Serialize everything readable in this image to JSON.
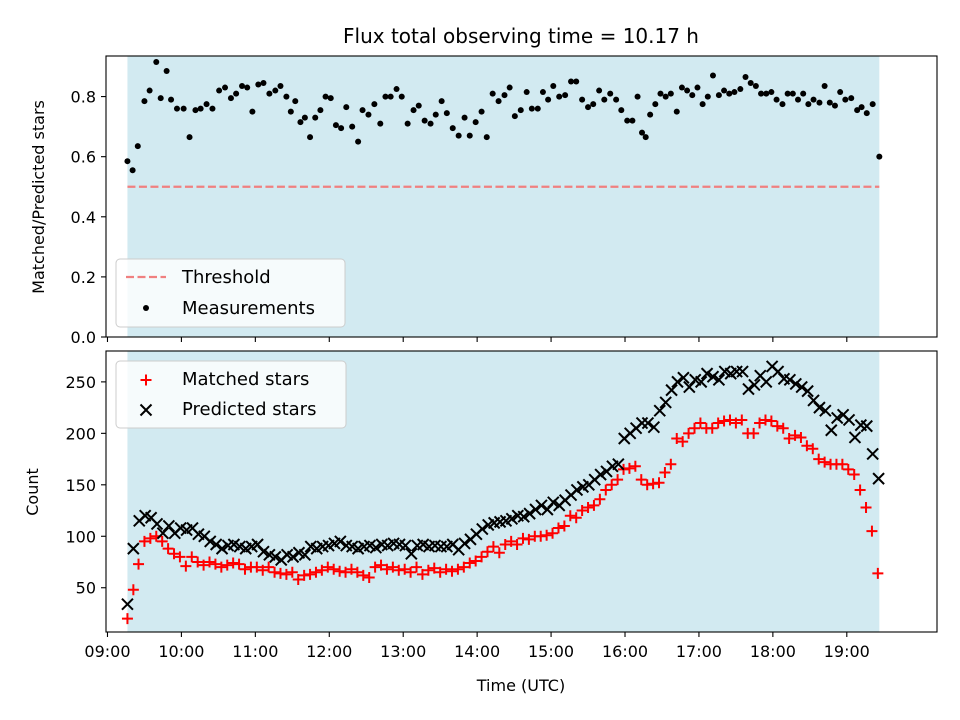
{
  "figure": {
    "title": "Flux total observing time = 10.17 h"
  },
  "chart_data": [
    {
      "type": "scatter",
      "panel": "top",
      "title": "Flux total observing time = 10.17 h",
      "xlabel": "",
      "ylabel": "Matched/Predicted stars",
      "xlim": [
        8.98,
        20.22
      ],
      "ylim": [
        0.0,
        0.935
      ],
      "yticks": [
        0.0,
        0.2,
        0.4,
        0.6,
        0.8
      ],
      "ytick_labels": [
        "0.0",
        "0.2",
        "0.4",
        "0.6",
        "0.8"
      ],
      "observing_span": [
        9.27,
        19.44
      ],
      "observing_span_color": "#add8e6",
      "legend": {
        "position": "lower-left",
        "entries": [
          "Threshold",
          "Measurements"
        ]
      },
      "threshold": {
        "name": "Threshold",
        "value": 0.5,
        "x_range": [
          9.27,
          19.44
        ],
        "color": "#f08080",
        "style": "dashed"
      },
      "series": [
        {
          "name": "Measurements",
          "color": "#000000",
          "marker": "dot",
          "x": [
            9.27,
            9.34,
            9.41,
            9.5,
            9.57,
            9.66,
            9.72,
            9.8,
            9.86,
            9.94,
            10.03,
            10.11,
            10.19,
            10.26,
            10.34,
            10.42,
            10.51,
            10.59,
            10.67,
            10.74,
            10.82,
            10.89,
            10.96,
            11.04,
            11.11,
            11.19,
            11.27,
            11.34,
            11.42,
            11.48,
            11.54,
            11.61,
            11.67,
            11.74,
            11.81,
            11.88,
            11.95,
            12.02,
            12.09,
            12.16,
            12.23,
            12.31,
            12.39,
            12.45,
            12.53,
            12.61,
            12.69,
            12.76,
            12.83,
            12.91,
            12.98,
            13.06,
            13.14,
            13.21,
            13.29,
            13.37,
            13.44,
            13.52,
            13.59,
            13.67,
            13.75,
            13.83,
            13.9,
            13.98,
            14.06,
            14.13,
            14.21,
            14.29,
            14.37,
            14.44,
            14.51,
            14.59,
            14.67,
            14.74,
            14.82,
            14.89,
            14.96,
            15.03,
            15.11,
            15.19,
            15.27,
            15.34,
            15.42,
            15.5,
            15.57,
            15.65,
            15.72,
            15.8,
            15.88,
            15.95,
            16.03,
            16.1,
            16.17,
            16.23,
            16.28,
            16.34,
            16.41,
            16.48,
            16.55,
            16.62,
            16.7,
            16.77,
            16.84,
            16.91,
            16.98,
            17.05,
            17.12,
            17.19,
            17.27,
            17.34,
            17.41,
            17.48,
            17.56,
            17.63,
            17.7,
            17.77,
            17.84,
            17.91,
            17.98,
            18.05,
            18.13,
            18.2,
            18.27,
            18.34,
            18.41,
            18.48,
            18.55,
            18.63,
            18.7,
            18.77,
            18.84,
            18.91,
            18.98,
            19.06,
            19.14,
            19.2,
            19.27,
            19.35,
            19.44
          ],
          "y": [
            0.585,
            0.555,
            0.635,
            0.785,
            0.82,
            0.915,
            0.795,
            0.885,
            0.79,
            0.76,
            0.76,
            0.665,
            0.755,
            0.76,
            0.775,
            0.76,
            0.82,
            0.83,
            0.795,
            0.81,
            0.835,
            0.83,
            0.75,
            0.84,
            0.845,
            0.81,
            0.82,
            0.835,
            0.8,
            0.75,
            0.785,
            0.715,
            0.73,
            0.665,
            0.73,
            0.755,
            0.8,
            0.795,
            0.705,
            0.695,
            0.765,
            0.7,
            0.65,
            0.755,
            0.74,
            0.775,
            0.71,
            0.8,
            0.8,
            0.825,
            0.8,
            0.71,
            0.755,
            0.77,
            0.72,
            0.71,
            0.74,
            0.785,
            0.745,
            0.695,
            0.67,
            0.73,
            0.67,
            0.715,
            0.75,
            0.665,
            0.81,
            0.785,
            0.805,
            0.83,
            0.735,
            0.755,
            0.815,
            0.76,
            0.76,
            0.815,
            0.79,
            0.835,
            0.8,
            0.805,
            0.85,
            0.85,
            0.79,
            0.765,
            0.775,
            0.82,
            0.79,
            0.81,
            0.79,
            0.755,
            0.72,
            0.72,
            0.8,
            0.68,
            0.665,
            0.74,
            0.775,
            0.81,
            0.8,
            0.81,
            0.75,
            0.83,
            0.82,
            0.805,
            0.83,
            0.775,
            0.8,
            0.87,
            0.805,
            0.82,
            0.81,
            0.815,
            0.825,
            0.865,
            0.845,
            0.835,
            0.81,
            0.81,
            0.815,
            0.79,
            0.775,
            0.81,
            0.81,
            0.79,
            0.81,
            0.775,
            0.79,
            0.78,
            0.835,
            0.78,
            0.77,
            0.815,
            0.79,
            0.795,
            0.755,
            0.765,
            0.745,
            0.775,
            0.6
          ]
        }
      ]
    },
    {
      "type": "scatter",
      "panel": "bottom",
      "title": "",
      "xlabel": "Time (UTC)",
      "ylabel": "Count",
      "xlim": [
        8.98,
        20.22
      ],
      "ylim": [
        7,
        280
      ],
      "yticks": [
        50,
        100,
        150,
        200,
        250
      ],
      "ytick_labels": [
        "50",
        "100",
        "150",
        "200",
        "250"
      ],
      "xticks": [
        9,
        10,
        11,
        12,
        13,
        14,
        15,
        16,
        17,
        18,
        19
      ],
      "xtick_labels": [
        "09:00",
        "10:00",
        "11:00",
        "12:00",
        "13:00",
        "14:00",
        "15:00",
        "16:00",
        "17:00",
        "18:00",
        "19:00"
      ],
      "observing_span": [
        9.27,
        19.44
      ],
      "observing_span_color": "#add8e6",
      "legend": {
        "position": "top-left",
        "entries": [
          "Matched stars",
          "Predicted stars"
        ]
      },
      "series": [
        {
          "name": "Matched stars",
          "color": "#ff0000",
          "marker": "plus",
          "x": [
            9.27,
            9.35,
            9.42,
            9.5,
            9.58,
            9.66,
            9.74,
            9.82,
            9.9,
            9.98,
            10.06,
            10.14,
            10.22,
            10.3,
            10.38,
            10.46,
            10.54,
            10.62,
            10.7,
            10.78,
            10.86,
            10.94,
            11.02,
            11.1,
            11.18,
            11.26,
            11.34,
            11.42,
            11.5,
            11.58,
            11.66,
            11.74,
            11.82,
            11.9,
            11.98,
            12.06,
            12.14,
            12.22,
            12.3,
            12.38,
            12.46,
            12.54,
            12.62,
            12.7,
            12.78,
            12.86,
            12.94,
            13.02,
            13.1,
            13.18,
            13.26,
            13.34,
            13.42,
            13.5,
            13.58,
            13.66,
            13.74,
            13.82,
            13.9,
            13.98,
            14.06,
            14.14,
            14.22,
            14.3,
            14.38,
            14.46,
            14.54,
            14.62,
            14.7,
            14.78,
            14.86,
            14.94,
            15.02,
            15.1,
            15.18,
            15.26,
            15.34,
            15.42,
            15.5,
            15.58,
            15.66,
            15.74,
            15.82,
            15.9,
            15.98,
            16.06,
            16.14,
            16.22,
            16.3,
            16.38,
            16.46,
            16.54,
            16.62,
            16.7,
            16.78,
            16.86,
            16.94,
            17.02,
            17.1,
            17.18,
            17.26,
            17.34,
            17.42,
            17.5,
            17.58,
            17.66,
            17.74,
            17.82,
            17.9,
            17.98,
            18.06,
            18.14,
            18.22,
            18.3,
            18.38,
            18.46,
            18.54,
            18.62,
            18.7,
            18.78,
            18.86,
            18.94,
            19.02,
            19.1,
            19.18,
            19.26,
            19.34,
            19.42
          ],
          "y": [
            20,
            48,
            73,
            95,
            98,
            100,
            95,
            88,
            83,
            80,
            71,
            80,
            75,
            72,
            75,
            73,
            70,
            72,
            74,
            73,
            68,
            70,
            70,
            67,
            70,
            65,
            64,
            63,
            65,
            58,
            62,
            63,
            65,
            67,
            70,
            68,
            66,
            65,
            68,
            65,
            62,
            60,
            70,
            72,
            68,
            70,
            67,
            68,
            65,
            70,
            63,
            67,
            69,
            65,
            68,
            66,
            68,
            70,
            74,
            76,
            80,
            85,
            90,
            84,
            92,
            95,
            92,
            98,
            97,
            100,
            100,
            101,
            103,
            108,
            110,
            120,
            118,
            125,
            128,
            130,
            136,
            145,
            150,
            155,
            165,
            166,
            168,
            155,
            150,
            151,
            152,
            162,
            170,
            195,
            192,
            200,
            205,
            210,
            205,
            205,
            210,
            212,
            213,
            210,
            213,
            200,
            200,
            210,
            213,
            212,
            207,
            205,
            195,
            198,
            196,
            188,
            185,
            175,
            172,
            170,
            170,
            170,
            165,
            160,
            145,
            128,
            105,
            64
          ]
        },
        {
          "name": "Predicted stars",
          "color": "#000000",
          "marker": "x",
          "x": [
            9.27,
            9.35,
            9.43,
            9.51,
            9.59,
            9.67,
            9.75,
            9.83,
            9.91,
            9.99,
            10.07,
            10.15,
            10.23,
            10.31,
            10.39,
            10.47,
            10.55,
            10.63,
            10.71,
            10.79,
            10.87,
            10.95,
            11.03,
            11.11,
            11.19,
            11.27,
            11.35,
            11.43,
            11.51,
            11.59,
            11.67,
            11.75,
            11.83,
            11.91,
            11.99,
            12.07,
            12.15,
            12.23,
            12.31,
            12.39,
            12.47,
            12.55,
            12.63,
            12.71,
            12.79,
            12.87,
            12.95,
            13.03,
            13.11,
            13.19,
            13.27,
            13.35,
            13.43,
            13.51,
            13.59,
            13.67,
            13.75,
            13.83,
            13.91,
            13.99,
            14.07,
            14.15,
            14.23,
            14.31,
            14.39,
            14.47,
            14.55,
            14.63,
            14.71,
            14.79,
            14.87,
            14.95,
            15.03,
            15.11,
            15.19,
            15.27,
            15.35,
            15.43,
            15.51,
            15.59,
            15.67,
            15.75,
            15.83,
            15.91,
            15.99,
            16.07,
            16.15,
            16.23,
            16.31,
            16.39,
            16.47,
            16.55,
            16.63,
            16.71,
            16.79,
            16.87,
            16.95,
            17.03,
            17.11,
            17.19,
            17.27,
            17.35,
            17.43,
            17.51,
            17.59,
            17.67,
            17.75,
            17.83,
            17.91,
            17.99,
            18.07,
            18.15,
            18.23,
            18.31,
            18.39,
            18.47,
            18.55,
            18.63,
            18.71,
            18.79,
            18.87,
            18.95,
            19.03,
            19.11,
            19.19,
            19.27,
            19.35,
            19.43
          ],
          "y": [
            34,
            88,
            115,
            120,
            118,
            112,
            103,
            110,
            103,
            108,
            106,
            108,
            102,
            100,
            95,
            92,
            88,
            91,
            92,
            90,
            88,
            90,
            92,
            85,
            82,
            80,
            77,
            82,
            80,
            84,
            82,
            90,
            88,
            90,
            91,
            93,
            95,
            91,
            90,
            88,
            90,
            91,
            89,
            92,
            91,
            93,
            92,
            91,
            83,
            91,
            92,
            90,
            91,
            90,
            90,
            92,
            87,
            93,
            97,
            102,
            107,
            111,
            113,
            114,
            115,
            117,
            120,
            119,
            122,
            126,
            130,
            126,
            133,
            130,
            135,
            140,
            145,
            148,
            150,
            155,
            160,
            163,
            168,
            170,
            195,
            200,
            205,
            210,
            210,
            206,
            222,
            230,
            242,
            250,
            254,
            245,
            252,
            250,
            258,
            255,
            252,
            260,
            258,
            260,
            260,
            243,
            247,
            256,
            250,
            265,
            260,
            253,
            252,
            248,
            245,
            241,
            232,
            225,
            222,
            203,
            215,
            218,
            213,
            196,
            208,
            207,
            180,
            156
          ]
        }
      ]
    }
  ]
}
